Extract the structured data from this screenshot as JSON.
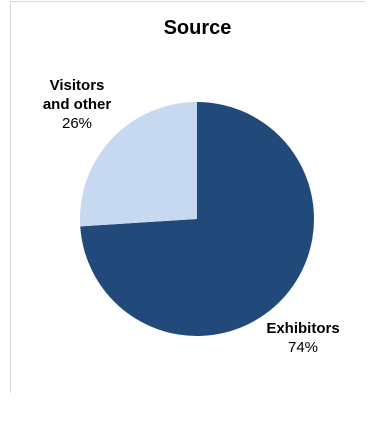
{
  "chart_data": {
    "type": "pie",
    "title": "Source",
    "slices": [
      {
        "label_lines": [
          "Exhibitors"
        ],
        "value": 74,
        "value_label": "74%",
        "color": "#21497a"
      },
      {
        "label_lines": [
          "Visitors",
          "and other"
        ],
        "value": 26,
        "value_label": "26%",
        "color": "#c6d9f1"
      }
    ],
    "legend": "none"
  }
}
